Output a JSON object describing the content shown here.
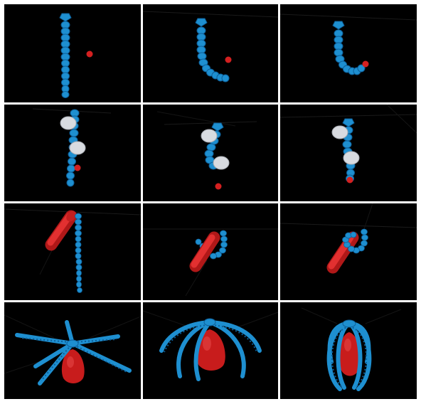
{
  "figure": {
    "background": "#000000",
    "colors": {
      "robot": "#1e8fd0",
      "robot_dark": "#0d5f99",
      "target": "#d42020",
      "obstacle": "#d8dbe0"
    },
    "panels": [
      {
        "row": 1,
        "col": 1,
        "scene": "straight-chain-with-red-ball",
        "stage": "initial"
      },
      {
        "row": 1,
        "col": 2,
        "scene": "chain-curling-toward-red-ball",
        "stage": "mid"
      },
      {
        "row": 1,
        "col": 3,
        "scene": "chain-reaching-red-ball",
        "stage": "final"
      },
      {
        "row": 2,
        "col": 1,
        "scene": "chain-between-white-obstacles-with-red-ball",
        "stage": "initial"
      },
      {
        "row": 2,
        "col": 2,
        "scene": "chain-weaving-between-obstacles",
        "stage": "mid"
      },
      {
        "row": 2,
        "col": 3,
        "scene": "chain-reaching-target-past-obstacles",
        "stage": "final"
      },
      {
        "row": 3,
        "col": 1,
        "scene": "chain-beside-red-cylinder",
        "stage": "initial"
      },
      {
        "row": 3,
        "col": 2,
        "scene": "chain-hooking-red-cylinder",
        "stage": "mid"
      },
      {
        "row": 3,
        "col": 3,
        "scene": "chain-wrapping-red-cylinder",
        "stage": "final"
      },
      {
        "row": 4,
        "col": 1,
        "scene": "star-gripper-open-above-red-egg",
        "stage": "initial"
      },
      {
        "row": 4,
        "col": 2,
        "scene": "gripper-arms-curving-around-egg",
        "stage": "mid"
      },
      {
        "row": 4,
        "col": 3,
        "scene": "gripper-enclosing-egg",
        "stage": "final"
      }
    ]
  }
}
